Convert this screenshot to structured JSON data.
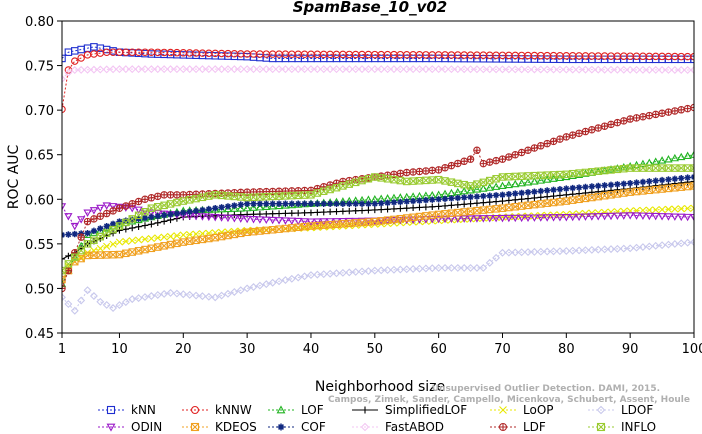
{
  "chart_data": {
    "type": "line",
    "title": "SpamBase_10_v02",
    "xlabel": "Neighborhood size",
    "ylabel": "ROC AUC",
    "xlim": [
      1,
      100
    ],
    "ylim": [
      0.45,
      0.8
    ],
    "xticks": [
      "1",
      "10",
      "20",
      "30",
      "40",
      "50",
      "60",
      "70",
      "80",
      "90",
      "100"
    ],
    "yticks": [
      "0.45",
      "0.50",
      "0.55",
      "0.60",
      "0.65",
      "0.70",
      "0.75",
      "0.80"
    ],
    "grid": false,
    "legend_position": "bottom",
    "watermark": "Unsupervised Outlier Detection. DAMI, 2015. Campos, Zimek, Sander, Campello, Micenkova, Schubert, Assent, Houle",
    "series": [
      {
        "name": "kNN",
        "color": "#1f2fd0",
        "marker": "square",
        "dashed": true,
        "keypoints": [
          [
            1,
            0.758
          ],
          [
            2,
            0.765
          ],
          [
            4,
            0.768
          ],
          [
            6,
            0.771
          ],
          [
            8,
            0.768
          ],
          [
            10,
            0.765
          ],
          [
            15,
            0.763
          ],
          [
            20,
            0.762
          ],
          [
            30,
            0.76
          ],
          [
            34,
            0.758
          ],
          [
            40,
            0.758
          ],
          [
            60,
            0.758
          ],
          [
            80,
            0.757
          ],
          [
            100,
            0.757
          ]
        ]
      },
      {
        "name": "kNNW",
        "color": "#e02020",
        "marker": "circle",
        "dashed": true,
        "keypoints": [
          [
            1,
            0.701
          ],
          [
            2,
            0.745
          ],
          [
            3,
            0.755
          ],
          [
            5,
            0.762
          ],
          [
            8,
            0.765
          ],
          [
            15,
            0.765
          ],
          [
            30,
            0.763
          ],
          [
            60,
            0.762
          ],
          [
            100,
            0.76
          ]
        ]
      },
      {
        "name": "LOF",
        "color": "#22b422",
        "marker": "triangle-up",
        "dashed": true,
        "keypoints": [
          [
            1,
            0.505
          ],
          [
            3,
            0.535
          ],
          [
            5,
            0.56
          ],
          [
            10,
            0.572
          ],
          [
            15,
            0.58
          ],
          [
            20,
            0.587
          ],
          [
            30,
            0.59
          ],
          [
            40,
            0.595
          ],
          [
            50,
            0.6
          ],
          [
            60,
            0.605
          ],
          [
            70,
            0.615
          ],
          [
            80,
            0.625
          ],
          [
            90,
            0.637
          ],
          [
            100,
            0.65
          ]
        ]
      },
      {
        "name": "SimplifiedLOF",
        "color": "#000000",
        "marker": "plus",
        "dashed": false,
        "keypoints": [
          [
            1,
            0.533
          ],
          [
            3,
            0.54
          ],
          [
            5,
            0.55
          ],
          [
            10,
            0.565
          ],
          [
            15,
            0.572
          ],
          [
            20,
            0.58
          ],
          [
            30,
            0.583
          ],
          [
            40,
            0.585
          ],
          [
            50,
            0.588
          ],
          [
            60,
            0.592
          ],
          [
            70,
            0.598
          ],
          [
            80,
            0.605
          ],
          [
            90,
            0.612
          ],
          [
            100,
            0.62
          ]
        ]
      },
      {
        "name": "LoOP",
        "color": "#e8e800",
        "marker": "x",
        "dashed": true,
        "keypoints": [
          [
            1,
            0.52
          ],
          [
            5,
            0.54
          ],
          [
            10,
            0.552
          ],
          [
            20,
            0.56
          ],
          [
            30,
            0.565
          ],
          [
            40,
            0.568
          ],
          [
            50,
            0.572
          ],
          [
            60,
            0.576
          ],
          [
            70,
            0.58
          ],
          [
            80,
            0.583
          ],
          [
            90,
            0.587
          ],
          [
            100,
            0.59
          ]
        ]
      },
      {
        "name": "LDOF",
        "color": "#c8c8ec",
        "marker": "diamond",
        "dashed": true,
        "keypoints": [
          [
            1,
            0.49
          ],
          [
            3,
            0.475
          ],
          [
            5,
            0.498
          ],
          [
            7,
            0.485
          ],
          [
            9,
            0.478
          ],
          [
            12,
            0.488
          ],
          [
            18,
            0.495
          ],
          [
            22,
            0.492
          ],
          [
            25,
            0.49
          ],
          [
            30,
            0.5
          ],
          [
            35,
            0.508
          ],
          [
            40,
            0.515
          ],
          [
            50,
            0.52
          ],
          [
            60,
            0.523
          ],
          [
            67,
            0.523
          ],
          [
            70,
            0.54
          ],
          [
            80,
            0.542
          ],
          [
            90,
            0.545
          ],
          [
            100,
            0.552
          ]
        ]
      },
      {
        "name": "ODIN",
        "color": "#9a18c8",
        "marker": "triangle-down",
        "dashed": true,
        "keypoints": [
          [
            1,
            0.592
          ],
          [
            3,
            0.57
          ],
          [
            5,
            0.585
          ],
          [
            8,
            0.593
          ],
          [
            12,
            0.59
          ],
          [
            15,
            0.585
          ],
          [
            20,
            0.582
          ],
          [
            30,
            0.578
          ],
          [
            40,
            0.575
          ],
          [
            50,
            0.576
          ],
          [
            60,
            0.578
          ],
          [
            70,
            0.579
          ],
          [
            80,
            0.58
          ],
          [
            90,
            0.582
          ],
          [
            100,
            0.58
          ]
        ]
      },
      {
        "name": "KDEOS",
        "color": "#f0a020",
        "marker": "square-x",
        "dashed": true,
        "keypoints": [
          [
            1,
            0.51
          ],
          [
            3,
            0.53
          ],
          [
            5,
            0.537
          ],
          [
            10,
            0.538
          ],
          [
            15,
            0.545
          ],
          [
            20,
            0.552
          ],
          [
            25,
            0.557
          ],
          [
            30,
            0.563
          ],
          [
            40,
            0.57
          ],
          [
            50,
            0.575
          ],
          [
            60,
            0.583
          ],
          [
            70,
            0.59
          ],
          [
            80,
            0.598
          ],
          [
            90,
            0.608
          ],
          [
            100,
            0.615
          ]
        ]
      },
      {
        "name": "COF",
        "color": "#102880",
        "marker": "asterisk",
        "dashed": true,
        "keypoints": [
          [
            1,
            0.56
          ],
          [
            5,
            0.562
          ],
          [
            10,
            0.575
          ],
          [
            15,
            0.58
          ],
          [
            20,
            0.585
          ],
          [
            25,
            0.59
          ],
          [
            30,
            0.595
          ],
          [
            40,
            0.595
          ],
          [
            50,
            0.595
          ],
          [
            60,
            0.6
          ],
          [
            70,
            0.605
          ],
          [
            80,
            0.612
          ],
          [
            90,
            0.618
          ],
          [
            100,
            0.625
          ]
        ]
      },
      {
        "name": "FastABOD",
        "color": "#f3c6f3",
        "marker": "diamond",
        "dashed": true,
        "keypoints": [
          [
            1,
            0.735
          ],
          [
            2,
            0.742
          ],
          [
            3,
            0.745
          ],
          [
            10,
            0.746
          ],
          [
            30,
            0.746
          ],
          [
            60,
            0.746
          ],
          [
            100,
            0.745
          ]
        ]
      },
      {
        "name": "LDF",
        "color": "#b02828",
        "marker": "circle-plus",
        "dashed": true,
        "keypoints": [
          [
            1,
            0.5
          ],
          [
            3,
            0.54
          ],
          [
            5,
            0.575
          ],
          [
            10,
            0.59
          ],
          [
            14,
            0.6
          ],
          [
            17,
            0.605
          ],
          [
            20,
            0.605
          ],
          [
            30,
            0.608
          ],
          [
            40,
            0.61
          ],
          [
            45,
            0.62
          ],
          [
            50,
            0.625
          ],
          [
            55,
            0.63
          ],
          [
            60,
            0.633
          ],
          [
            65,
            0.645
          ],
          [
            66,
            0.655
          ],
          [
            67,
            0.64
          ],
          [
            70,
            0.645
          ],
          [
            80,
            0.67
          ],
          [
            90,
            0.69
          ],
          [
            100,
            0.703
          ]
        ]
      },
      {
        "name": "INFLO",
        "color": "#9acb32",
        "marker": "square-x",
        "dashed": true,
        "keypoints": [
          [
            1,
            0.52
          ],
          [
            5,
            0.55
          ],
          [
            10,
            0.57
          ],
          [
            15,
            0.59
          ],
          [
            20,
            0.598
          ],
          [
            25,
            0.605
          ],
          [
            30,
            0.602
          ],
          [
            40,
            0.605
          ],
          [
            45,
            0.615
          ],
          [
            50,
            0.625
          ],
          [
            55,
            0.62
          ],
          [
            60,
            0.622
          ],
          [
            65,
            0.615
          ],
          [
            70,
            0.625
          ],
          [
            80,
            0.628
          ],
          [
            90,
            0.635
          ],
          [
            100,
            0.635
          ]
        ]
      }
    ]
  }
}
